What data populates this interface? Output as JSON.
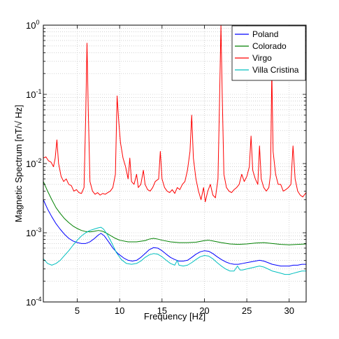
{
  "chart_data": {
    "type": "line",
    "xlabel": "Frequency [Hz]",
    "ylabel": "Magnetic Spectrum [nT/√ Hz]",
    "xlim": [
      1,
      32
    ],
    "ylim": [
      0.0001,
      1
    ],
    "yscale": "log",
    "grid": true,
    "legend_position": "top-right",
    "x_ticks": [
      5,
      10,
      15,
      20,
      25,
      30
    ],
    "x_tick_labels": [
      "5",
      "10",
      "15",
      "20",
      "25",
      "30"
    ],
    "y_ticks": [
      {
        "value": 0.0001,
        "base": "10",
        "exp": "-4"
      },
      {
        "value": 0.001,
        "base": "10",
        "exp": "-3"
      },
      {
        "value": 0.01,
        "base": "10",
        "exp": "-2"
      },
      {
        "value": 0.1,
        "base": "10",
        "exp": "-1"
      },
      {
        "value": 1,
        "base": "10",
        "exp": "0"
      }
    ],
    "series": [
      {
        "name": "Poland",
        "color": "#0000ff",
        "points": [
          [
            1,
            0.003
          ],
          [
            1.5,
            0.0022
          ],
          [
            2,
            0.0017
          ],
          [
            2.5,
            0.00135
          ],
          [
            3,
            0.00112
          ],
          [
            3.5,
            0.00095
          ],
          [
            4,
            0.00083
          ],
          [
            4.5,
            0.00076
          ],
          [
            5,
            0.00072
          ],
          [
            5.5,
            0.0007
          ],
          [
            6,
            0.0007
          ],
          [
            6.5,
            0.00074
          ],
          [
            7,
            0.00082
          ],
          [
            7.5,
            0.00093
          ],
          [
            7.8,
            0.00098
          ],
          [
            8.2,
            0.0009
          ],
          [
            8.7,
            0.00074
          ],
          [
            9.2,
            0.0006
          ],
          [
            9.8,
            0.0005
          ],
          [
            10.5,
            0.00043
          ],
          [
            11,
            0.0004
          ],
          [
            11.5,
            0.00039
          ],
          [
            12,
            0.0004
          ],
          [
            12.5,
            0.00044
          ],
          [
            13,
            0.0005
          ],
          [
            13.5,
            0.00057
          ],
          [
            14,
            0.00061
          ],
          [
            14.5,
            0.0006
          ],
          [
            15,
            0.00055
          ],
          [
            15.5,
            0.00049
          ],
          [
            16,
            0.00044
          ],
          [
            16.5,
            0.00041
          ],
          [
            17,
            0.00039
          ],
          [
            17.5,
            0.00039
          ],
          [
            18,
            0.0004
          ],
          [
            18.5,
            0.00044
          ],
          [
            19,
            0.00049
          ],
          [
            19.5,
            0.00053
          ],
          [
            20,
            0.00055
          ],
          [
            20.5,
            0.00054
          ],
          [
            21,
            0.0005
          ],
          [
            21.5,
            0.00045
          ],
          [
            22,
            0.00041
          ],
          [
            22.5,
            0.00038
          ],
          [
            23,
            0.00036
          ],
          [
            23.5,
            0.00035
          ],
          [
            24,
            0.00035
          ],
          [
            24.5,
            0.00036
          ],
          [
            25,
            0.00037
          ],
          [
            25.5,
            0.00038
          ],
          [
            26,
            0.00039
          ],
          [
            26.5,
            0.0004
          ],
          [
            27,
            0.00039
          ],
          [
            27.5,
            0.00037
          ],
          [
            28,
            0.00035
          ],
          [
            28.5,
            0.00034
          ],
          [
            29,
            0.00033
          ],
          [
            29.5,
            0.00033
          ],
          [
            30,
            0.00033
          ],
          [
            30.5,
            0.00034
          ],
          [
            31,
            0.00034
          ],
          [
            31.5,
            0.00035
          ],
          [
            32,
            0.00035
          ]
        ]
      },
      {
        "name": "Colorado",
        "color": "#008000",
        "points": [
          [
            1,
            0.0055
          ],
          [
            1.5,
            0.004
          ],
          [
            2,
            0.003
          ],
          [
            2.5,
            0.0023
          ],
          [
            3,
            0.0019
          ],
          [
            3.5,
            0.0016
          ],
          [
            4,
            0.0014
          ],
          [
            4.5,
            0.00125
          ],
          [
            5,
            0.00115
          ],
          [
            5.5,
            0.00108
          ],
          [
            6,
            0.00104
          ],
          [
            6.5,
            0.00103
          ],
          [
            7,
            0.00105
          ],
          [
            7.5,
            0.00108
          ],
          [
            8,
            0.00105
          ],
          [
            8.5,
            0.00098
          ],
          [
            9,
            0.0009
          ],
          [
            9.5,
            0.00083
          ],
          [
            10,
            0.00078
          ],
          [
            11,
            0.00074
          ],
          [
            12,
            0.00074
          ],
          [
            13,
            0.00077
          ],
          [
            13.5,
            0.00081
          ],
          [
            14,
            0.00083
          ],
          [
            14.5,
            0.00081
          ],
          [
            15,
            0.00078
          ],
          [
            16,
            0.00074
          ],
          [
            17,
            0.00072
          ],
          [
            18,
            0.00072
          ],
          [
            19,
            0.00073
          ],
          [
            20,
            0.00077
          ],
          [
            20.5,
            0.00078
          ],
          [
            21,
            0.00076
          ],
          [
            22,
            0.00072
          ],
          [
            23,
            0.00069
          ],
          [
            24,
            0.00068
          ],
          [
            25,
            0.00069
          ],
          [
            26,
            0.00071
          ],
          [
            27,
            0.00072
          ],
          [
            28,
            0.0007
          ],
          [
            29,
            0.00068
          ],
          [
            30,
            0.00067
          ],
          [
            31,
            0.00068
          ],
          [
            32,
            0.00069
          ]
        ]
      },
      {
        "name": "Virgo",
        "color": "#ff0000",
        "points": [
          [
            1,
            0.012
          ],
          [
            1.3,
            0.0125
          ],
          [
            1.6,
            0.011
          ],
          [
            1.9,
            0.0105
          ],
          [
            2.2,
            0.009
          ],
          [
            2.4,
            0.012
          ],
          [
            2.6,
            0.022
          ],
          [
            2.8,
            0.01
          ],
          [
            3.1,
            0.0065
          ],
          [
            3.4,
            0.0055
          ],
          [
            3.7,
            0.006
          ],
          [
            4.0,
            0.005
          ],
          [
            4.3,
            0.0048
          ],
          [
            4.6,
            0.004
          ],
          [
            4.9,
            0.0042
          ],
          [
            5.2,
            0.0038
          ],
          [
            5.5,
            0.0037
          ],
          [
            5.8,
            0.0045
          ],
          [
            6.0,
            0.05
          ],
          [
            6.15,
            0.55
          ],
          [
            6.3,
            0.06
          ],
          [
            6.5,
            0.0055
          ],
          [
            6.8,
            0.004
          ],
          [
            7.1,
            0.0036
          ],
          [
            7.4,
            0.0038
          ],
          [
            7.7,
            0.0035
          ],
          [
            8.0,
            0.0037
          ],
          [
            8.3,
            0.0036
          ],
          [
            8.6,
            0.0038
          ],
          [
            8.9,
            0.004
          ],
          [
            9.2,
            0.0045
          ],
          [
            9.5,
            0.007
          ],
          [
            9.7,
            0.095
          ],
          [
            9.9,
            0.04
          ],
          [
            10.1,
            0.02
          ],
          [
            10.4,
            0.012
          ],
          [
            10.7,
            0.009
          ],
          [
            11.0,
            0.006
          ],
          [
            11.2,
            0.012
          ],
          [
            11.4,
            0.0055
          ],
          [
            11.7,
            0.005
          ],
          [
            12.0,
            0.007
          ],
          [
            12.2,
            0.0045
          ],
          [
            12.5,
            0.005
          ],
          [
            12.8,
            0.008
          ],
          [
            13.0,
            0.005
          ],
          [
            13.3,
            0.0042
          ],
          [
            13.6,
            0.004
          ],
          [
            13.9,
            0.0045
          ],
          [
            14.2,
            0.0055
          ],
          [
            14.6,
            0.006
          ],
          [
            14.8,
            0.015
          ],
          [
            15.0,
            0.006
          ],
          [
            15.3,
            0.0045
          ],
          [
            15.6,
            0.004
          ],
          [
            15.9,
            0.0038
          ],
          [
            16.2,
            0.0042
          ],
          [
            16.5,
            0.0037
          ],
          [
            16.8,
            0.0045
          ],
          [
            17.1,
            0.0042
          ],
          [
            17.4,
            0.005
          ],
          [
            17.7,
            0.0055
          ],
          [
            18.0,
            0.008
          ],
          [
            18.3,
            0.015
          ],
          [
            18.5,
            0.05
          ],
          [
            18.7,
            0.012
          ],
          [
            19.0,
            0.006
          ],
          [
            19.3,
            0.004
          ],
          [
            19.6,
            0.003
          ],
          [
            19.9,
            0.0045
          ],
          [
            20.1,
            0.0028
          ],
          [
            20.4,
            0.004
          ],
          [
            20.7,
            0.005
          ],
          [
            21.0,
            0.0035
          ],
          [
            21.3,
            0.0032
          ],
          [
            21.6,
            0.006
          ],
          [
            21.8,
            0.1
          ],
          [
            21.95,
            1.0
          ],
          [
            22.1,
            0.1
          ],
          [
            22.3,
            0.007
          ],
          [
            22.6,
            0.0045
          ],
          [
            22.9,
            0.004
          ],
          [
            23.2,
            0.0038
          ],
          [
            23.5,
            0.0042
          ],
          [
            23.8,
            0.0045
          ],
          [
            24.1,
            0.005
          ],
          [
            24.4,
            0.007
          ],
          [
            24.7,
            0.0055
          ],
          [
            25.0,
            0.0065
          ],
          [
            25.3,
            0.009
          ],
          [
            25.5,
            0.025
          ],
          [
            25.7,
            0.008
          ],
          [
            26.0,
            0.006
          ],
          [
            26.3,
            0.005
          ],
          [
            26.5,
            0.018
          ],
          [
            26.7,
            0.006
          ],
          [
            27.0,
            0.0045
          ],
          [
            27.3,
            0.004
          ],
          [
            27.6,
            0.0045
          ],
          [
            27.8,
            0.007
          ],
          [
            27.95,
            0.22
          ],
          [
            28.1,
            0.015
          ],
          [
            28.4,
            0.007
          ],
          [
            28.7,
            0.005
          ],
          [
            29.0,
            0.005
          ],
          [
            29.3,
            0.004
          ],
          [
            29.6,
            0.0042
          ],
          [
            29.9,
            0.0045
          ],
          [
            30.2,
            0.005
          ],
          [
            30.45,
            0.018
          ],
          [
            30.7,
            0.006
          ],
          [
            31.0,
            0.004
          ],
          [
            31.3,
            0.0035
          ],
          [
            31.6,
            0.0033
          ],
          [
            32.0,
            0.0038
          ]
        ]
      },
      {
        "name": "Villa Cristina",
        "color": "#00bfbf",
        "points": [
          [
            1,
            0.00042
          ],
          [
            1.5,
            0.00036
          ],
          [
            2,
            0.00034
          ],
          [
            2.5,
            0.00036
          ],
          [
            3,
            0.0004
          ],
          [
            3.5,
            0.00047
          ],
          [
            4,
            0.00055
          ],
          [
            4.5,
            0.00066
          ],
          [
            5,
            0.00078
          ],
          [
            5.5,
            0.0009
          ],
          [
            6,
            0.001
          ],
          [
            6.5,
            0.00108
          ],
          [
            7,
            0.00113
          ],
          [
            7.5,
            0.00118
          ],
          [
            7.8,
            0.0012
          ],
          [
            8.1,
            0.00113
          ],
          [
            8.6,
            0.00092
          ],
          [
            9.1,
            0.0007
          ],
          [
            9.6,
            0.00052
          ],
          [
            10.2,
            0.00041
          ],
          [
            10.8,
            0.00036
          ],
          [
            11.4,
            0.00035
          ],
          [
            12,
            0.00036
          ],
          [
            12.5,
            0.00039
          ],
          [
            13,
            0.00044
          ],
          [
            13.5,
            0.00048
          ],
          [
            14,
            0.0005
          ],
          [
            14.5,
            0.00049
          ],
          [
            15,
            0.00045
          ],
          [
            15.5,
            0.0004
          ],
          [
            16,
            0.00036
          ],
          [
            16.5,
            0.00034
          ],
          [
            16.8,
            0.0004
          ],
          [
            17.0,
            0.00034
          ],
          [
            17.5,
            0.00033
          ],
          [
            18,
            0.00034
          ],
          [
            18.5,
            0.00037
          ],
          [
            19,
            0.00041
          ],
          [
            19.5,
            0.00045
          ],
          [
            20,
            0.00047
          ],
          [
            20.5,
            0.00046
          ],
          [
            21,
            0.00042
          ],
          [
            21.5,
            0.00037
          ],
          [
            22,
            0.00033
          ],
          [
            22.5,
            0.0003
          ],
          [
            23,
            0.00028
          ],
          [
            23.5,
            0.00028
          ],
          [
            23.9,
            0.00033
          ],
          [
            24.2,
            0.00029
          ],
          [
            24.5,
            0.00029
          ],
          [
            25,
            0.0003
          ],
          [
            25.5,
            0.00031
          ],
          [
            26,
            0.00032
          ],
          [
            26.5,
            0.00033
          ],
          [
            27,
            0.00032
          ],
          [
            27.5,
            0.0003
          ],
          [
            28,
            0.00028
          ],
          [
            28.5,
            0.00027
          ],
          [
            29,
            0.00026
          ],
          [
            29.5,
            0.00025
          ],
          [
            30,
            0.00025
          ],
          [
            30.5,
            0.00026
          ],
          [
            31,
            0.00027
          ],
          [
            31.5,
            0.00028
          ],
          [
            32,
            0.00028
          ]
        ]
      }
    ]
  }
}
